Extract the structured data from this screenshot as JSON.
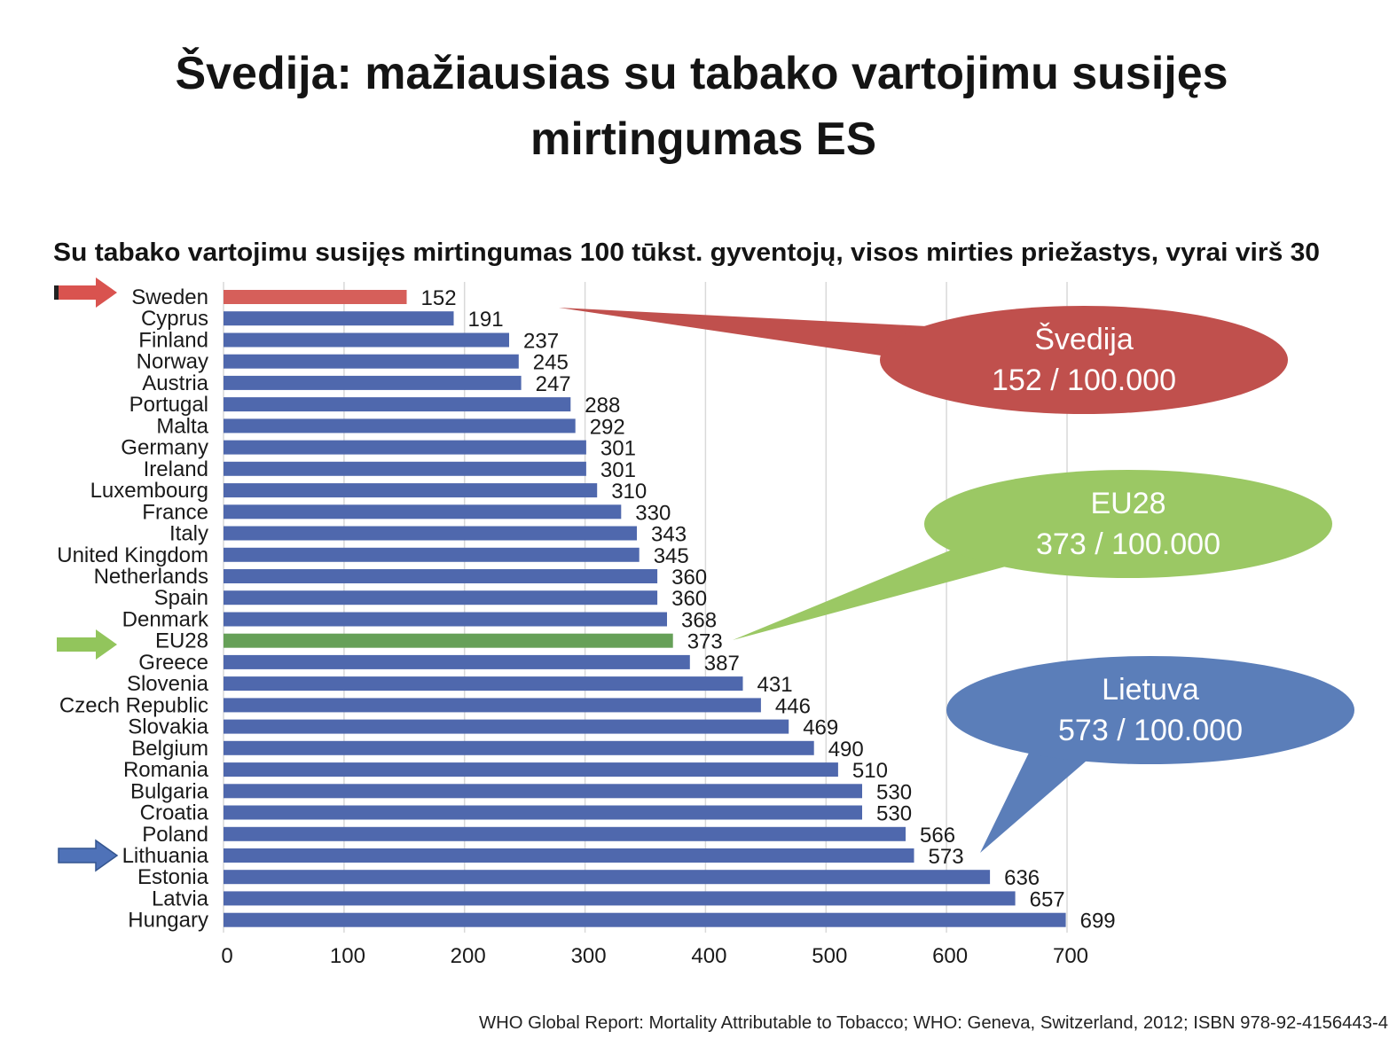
{
  "page": {
    "title_line1": "Švedija: mažiausias su tabako vartojimu susijęs",
    "title_line2": "mirtingumas ES",
    "source": "WHO Global Report: Mortality Attributable to Tobacco; WHO: Geneva, Switzerland, 2012; ISBN 978-92-4156443-4"
  },
  "chart_data": {
    "type": "bar",
    "orientation": "horizontal",
    "title": "Su tabako vartojimu susijęs mirtingumas 100 tūkst. gyventojų, visos mirties priežastys, vyrai virš 30",
    "categories": [
      "Sweden",
      "Cyprus",
      "Finland",
      "Norway",
      "Austria",
      "Portugal",
      "Malta",
      "Germany",
      "Ireland",
      "Luxembourg",
      "France",
      "Italy",
      "United Kingdom",
      "Netherlands",
      "Spain",
      "Denmark",
      "EU28",
      "Greece",
      "Slovenia",
      "Czech Republic",
      "Slovakia",
      "Belgium",
      "Romania",
      "Bulgaria",
      "Croatia",
      "Poland",
      "Lithuania",
      "Estonia",
      "Latvia",
      "Hungary"
    ],
    "values": [
      152,
      191,
      237,
      245,
      247,
      288,
      292,
      301,
      301,
      310,
      330,
      343,
      345,
      360,
      360,
      368,
      373,
      387,
      431,
      446,
      469,
      490,
      510,
      530,
      530,
      566,
      573,
      636,
      657,
      699
    ],
    "bar_colors": [
      "#D65F5A",
      "#4F68AD",
      "#4F68AD",
      "#4F68AD",
      "#4F68AD",
      "#4F68AD",
      "#4F68AD",
      "#4F68AD",
      "#4F68AD",
      "#4F68AD",
      "#4F68AD",
      "#4F68AD",
      "#4F68AD",
      "#4F68AD",
      "#4F68AD",
      "#4F68AD",
      "#66A058",
      "#4F68AD",
      "#4F68AD",
      "#4F68AD",
      "#4F68AD",
      "#4F68AD",
      "#4F68AD",
      "#4F68AD",
      "#4F68AD",
      "#4F68AD",
      "#4F68AD",
      "#4F68AD",
      "#4F68AD",
      "#4F68AD"
    ],
    "data_labels": true,
    "xlim": [
      0,
      700
    ],
    "xticks": [
      0,
      100,
      200,
      300,
      400,
      500,
      600,
      700
    ],
    "grid": true
  },
  "callouts": [
    {
      "label": "Švedija",
      "value": "152 / 100.000",
      "color": "#C0504D"
    },
    {
      "label": "EU28",
      "value": "373 / 100.000",
      "color": "#9BC864"
    },
    {
      "label": "Lietuva",
      "value": "573 / 100.000",
      "color": "#5B7EB9"
    }
  ],
  "markers": [
    {
      "icon": "right-arrow-icon",
      "color": "#D9534F"
    },
    {
      "icon": "right-arrow-icon",
      "color": "#92C55C"
    },
    {
      "icon": "right-arrow-icon",
      "color": "#4F72B8"
    }
  ]
}
